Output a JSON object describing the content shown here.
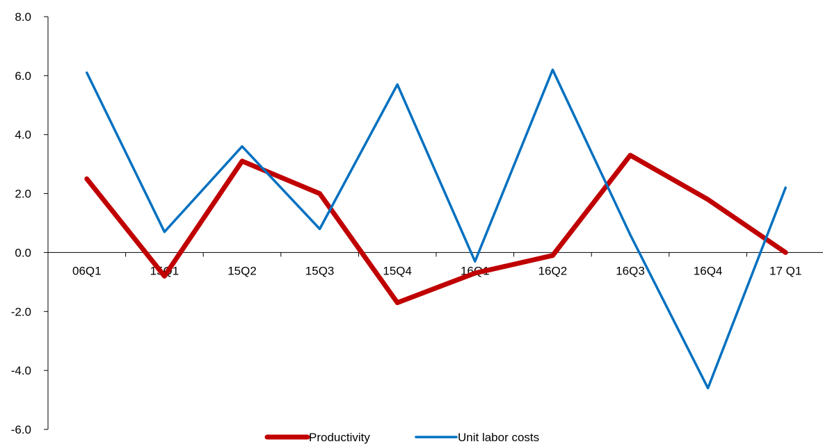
{
  "chart_data": {
    "type": "line",
    "title": "",
    "xlabel": "",
    "ylabel": "",
    "categories": [
      "06Q1",
      "15Q1",
      "15Q2",
      "15Q3",
      "15Q4",
      "16Q1",
      "16Q2",
      "16Q3",
      "16Q4",
      "17 Q1"
    ],
    "ylim": [
      -6.0,
      8.0
    ],
    "yticks": [
      8.0,
      6.0,
      4.0,
      2.0,
      0.0,
      -2.0,
      -4.0,
      -6.0
    ],
    "ytick_labels": [
      "8.0",
      "6.0",
      "4.0",
      "2.0",
      "0.0",
      "-2.0",
      "-4.0",
      "-6.0"
    ],
    "grid": false,
    "legend_position": "bottom",
    "series": [
      {
        "name": "Productivity",
        "color": "#C00000",
        "values": [
          2.5,
          -0.8,
          3.1,
          2.0,
          -1.7,
          -0.7,
          -0.1,
          3.3,
          1.8,
          0.0
        ]
      },
      {
        "name": "Unit labor costs",
        "color": "#0070C0",
        "values": [
          6.1,
          0.7,
          3.6,
          0.8,
          5.7,
          -0.3,
          6.2,
          0.6,
          -4.6,
          2.2
        ]
      }
    ]
  }
}
